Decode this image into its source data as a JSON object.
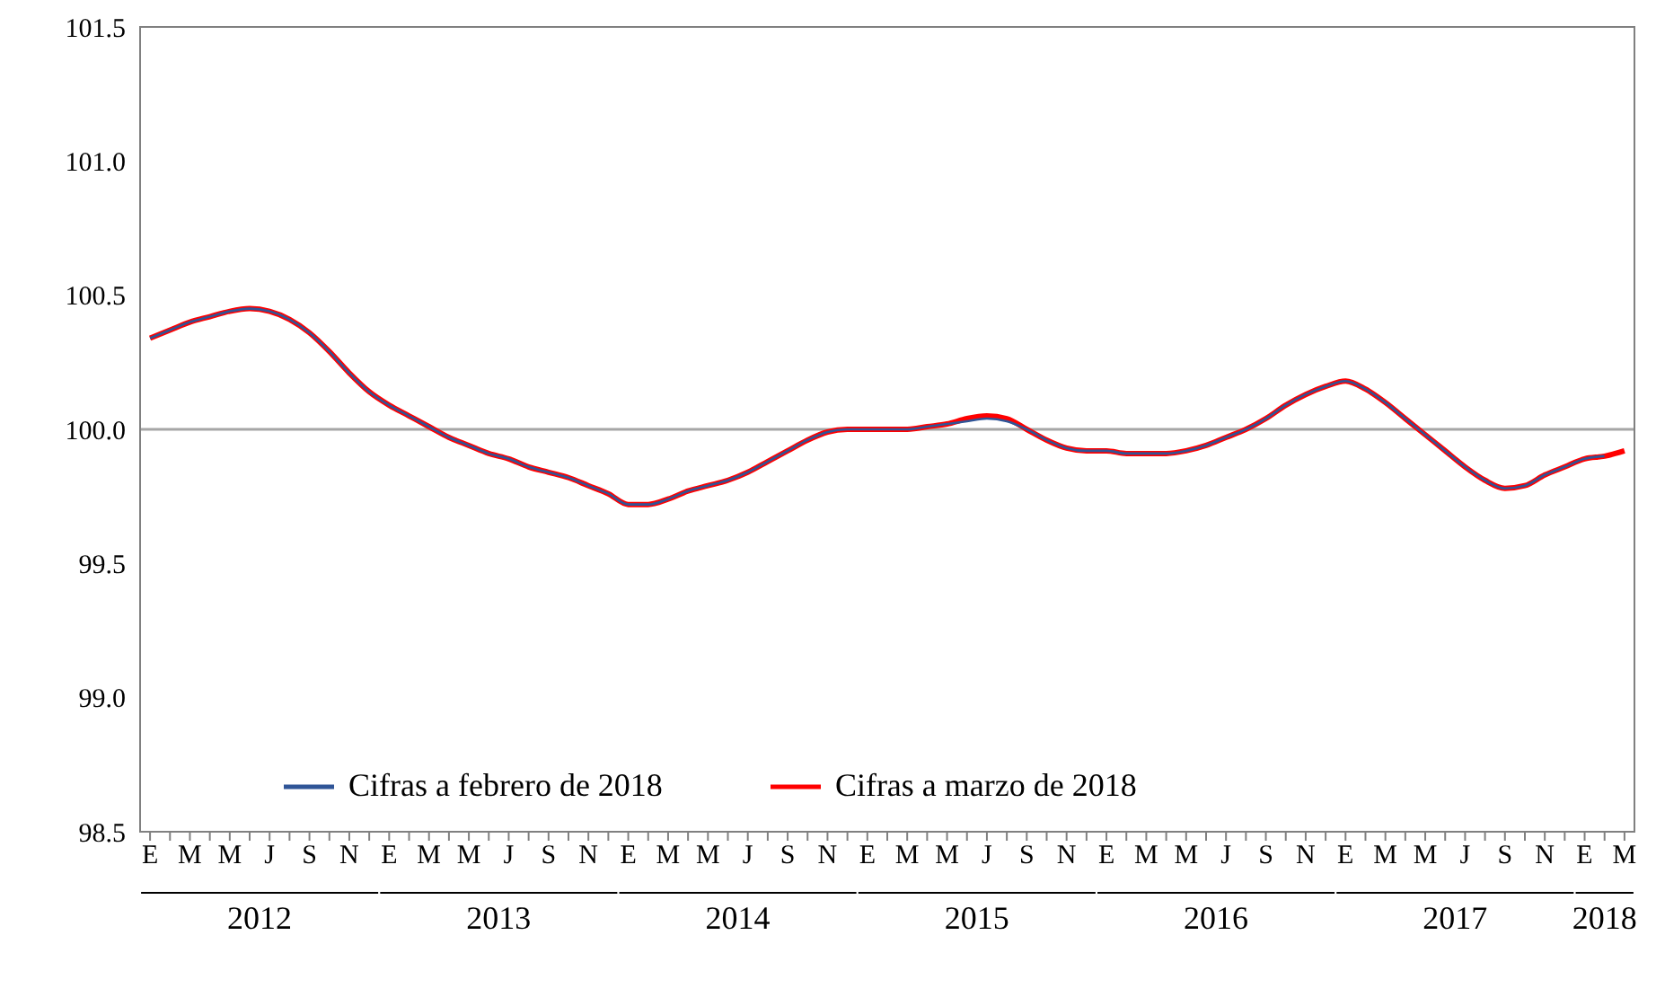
{
  "chart_data": {
    "type": "line",
    "categories": [
      "E",
      null,
      "M",
      null,
      "M",
      null,
      "J",
      null,
      "S",
      null,
      "N",
      null,
      "E",
      null,
      "M",
      null,
      "M",
      null,
      "J",
      null,
      "S",
      null,
      "N",
      null,
      "E",
      null,
      "M",
      null,
      "M",
      null,
      "J",
      null,
      "S",
      null,
      "N",
      null,
      "E",
      null,
      "M",
      null,
      "M",
      null,
      "J",
      null,
      "S",
      null,
      "N",
      null,
      "E",
      null,
      "M",
      null,
      "M",
      null,
      "J",
      null,
      "S",
      null,
      "N",
      null,
      "E",
      null,
      "M",
      null,
      "M",
      null,
      "J",
      null,
      "S",
      null,
      "N",
      null,
      "E",
      null,
      "M"
    ],
    "series": [
      {
        "name": "Cifras a febrero de 2018",
        "color": "#2f5597",
        "values": [
          100.34,
          100.37,
          100.4,
          100.42,
          100.44,
          100.45,
          100.44,
          100.41,
          100.36,
          100.29,
          100.21,
          100.14,
          100.09,
          100.05,
          100.01,
          99.97,
          99.94,
          99.91,
          99.89,
          99.86,
          99.84,
          99.82,
          99.79,
          99.76,
          99.72,
          99.72,
          99.74,
          99.77,
          99.79,
          99.81,
          99.84,
          99.88,
          99.92,
          99.96,
          99.99,
          100.0,
          100.0,
          100.0,
          100.0,
          100.01,
          100.02,
          100.03,
          100.04,
          100.03,
          100.0,
          99.96,
          99.93,
          99.92,
          99.92,
          99.91,
          99.91,
          99.91,
          99.92,
          99.94,
          99.97,
          100.0,
          100.04,
          100.09,
          100.13,
          100.16,
          100.18,
          100.15,
          100.1,
          100.04,
          99.98,
          99.92,
          99.86,
          99.81,
          99.78,
          99.79,
          99.83,
          99.86,
          99.89,
          99.9,
          null
        ]
      },
      {
        "name": "Cifras a marzo de 2018",
        "color": "#ff0000",
        "values": [
          100.34,
          100.37,
          100.4,
          100.42,
          100.44,
          100.45,
          100.44,
          100.41,
          100.36,
          100.29,
          100.21,
          100.14,
          100.09,
          100.05,
          100.01,
          99.97,
          99.94,
          99.91,
          99.89,
          99.86,
          99.84,
          99.82,
          99.79,
          99.76,
          99.72,
          99.72,
          99.74,
          99.77,
          99.79,
          99.81,
          99.84,
          99.88,
          99.92,
          99.96,
          99.99,
          100.0,
          100.0,
          100.0,
          100.0,
          100.01,
          100.02,
          100.04,
          100.05,
          100.04,
          100.0,
          99.96,
          99.93,
          99.92,
          99.92,
          99.91,
          99.91,
          99.91,
          99.92,
          99.94,
          99.97,
          100.0,
          100.04,
          100.09,
          100.13,
          100.16,
          100.18,
          100.15,
          100.1,
          100.04,
          99.98,
          99.92,
          99.86,
          99.81,
          99.78,
          99.79,
          99.83,
          99.86,
          99.89,
          99.9,
          99.92
        ]
      }
    ],
    "ylim": [
      98.5,
      101.5
    ],
    "yticks": [
      {
        "value": 98.5,
        "label": "98.5"
      },
      {
        "value": 99,
        "label": "99.0"
      },
      {
        "value": 99.5,
        "label": "99.5"
      },
      {
        "value": 100,
        "label": "100.0"
      },
      {
        "value": 100.5,
        "label": "100.5"
      },
      {
        "value": 101,
        "label": "101.0"
      },
      {
        "value": 101.5,
        "label": "101.5"
      }
    ],
    "ref_lines": [
      {
        "axis": "y",
        "value": 100,
        "color": "#a6a6a6"
      }
    ],
    "annotations": [
      "2012",
      "2013",
      "2014",
      "2015",
      "2016",
      "2017",
      "2018"
    ],
    "legend": "bottom",
    "grid": false,
    "marker": "none",
    "line_style": "solid"
  }
}
